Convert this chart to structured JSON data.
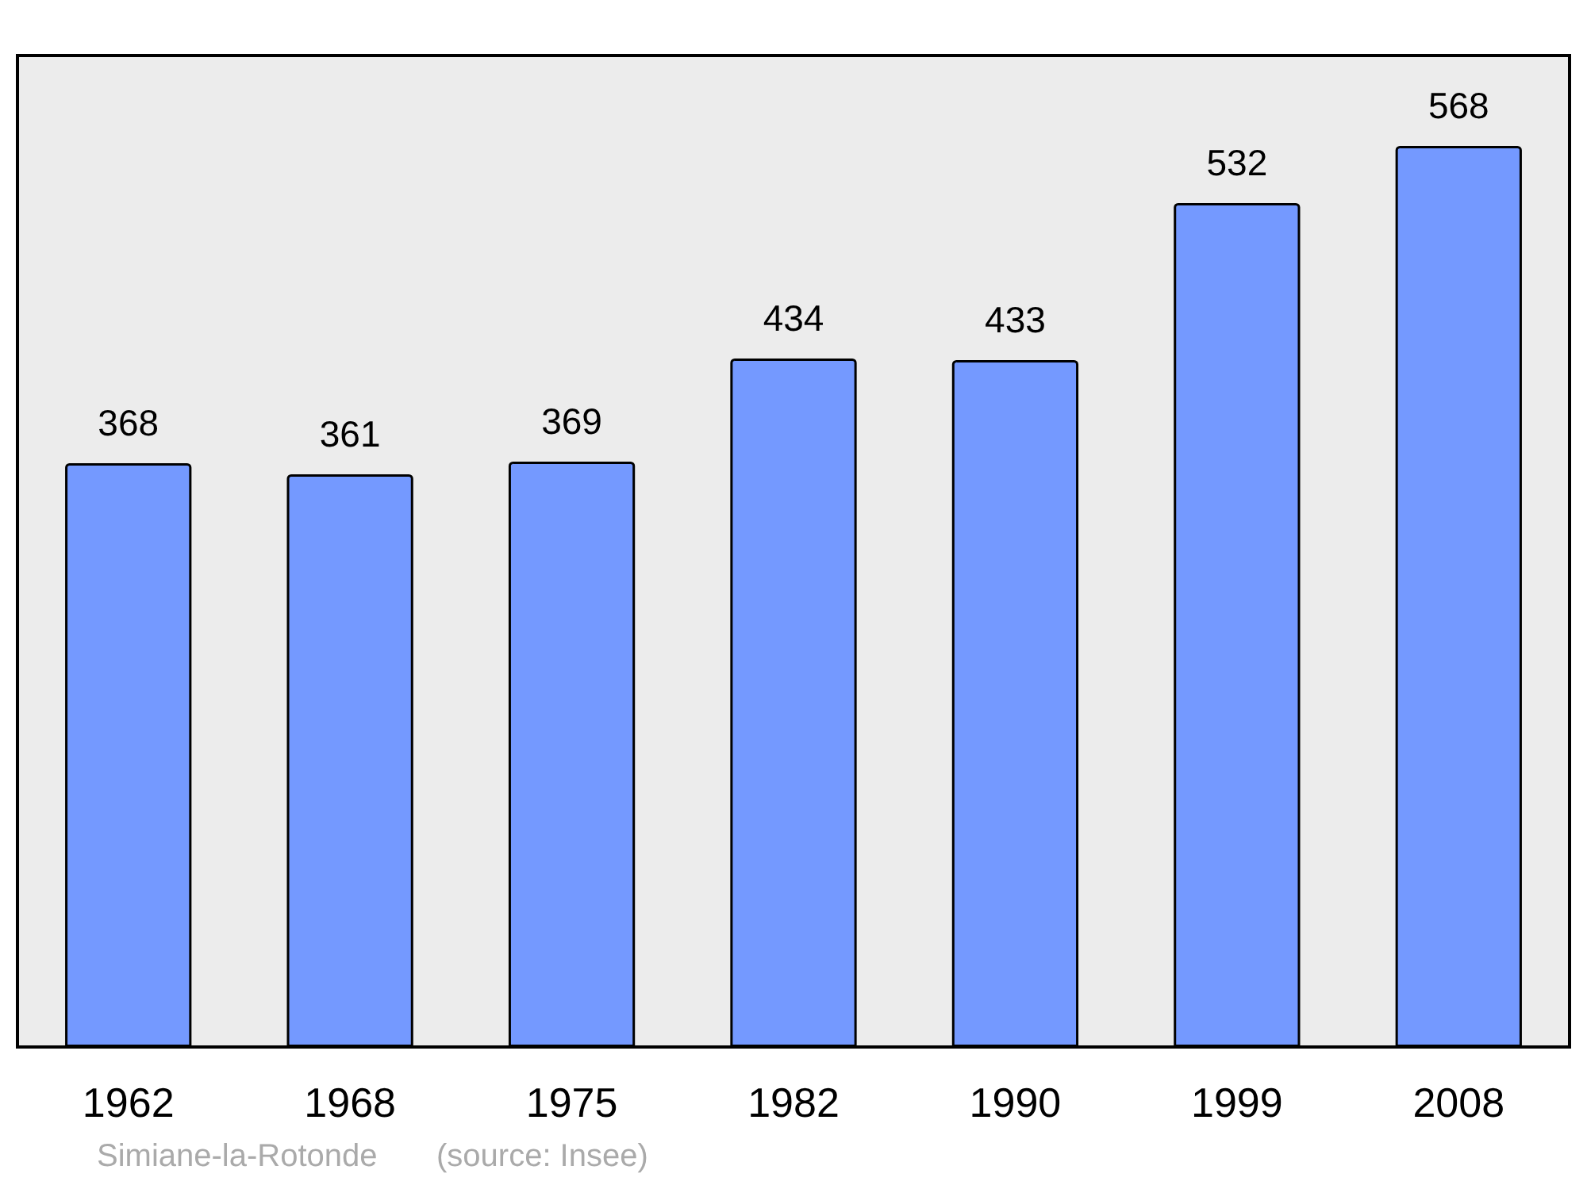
{
  "chart_data": {
    "type": "bar",
    "categories": [
      "1962",
      "1968",
      "1975",
      "1982",
      "1990",
      "1999",
      "2008"
    ],
    "values": [
      368,
      361,
      369,
      434,
      433,
      532,
      568
    ],
    "color": "#7499ff",
    "ylim": [
      0,
      625
    ],
    "tick_labels": "x",
    "grid": false,
    "data_labels": true,
    "annotations": [
      "Simiane-la-Rotonde",
      "(source: Insee)"
    ]
  }
}
